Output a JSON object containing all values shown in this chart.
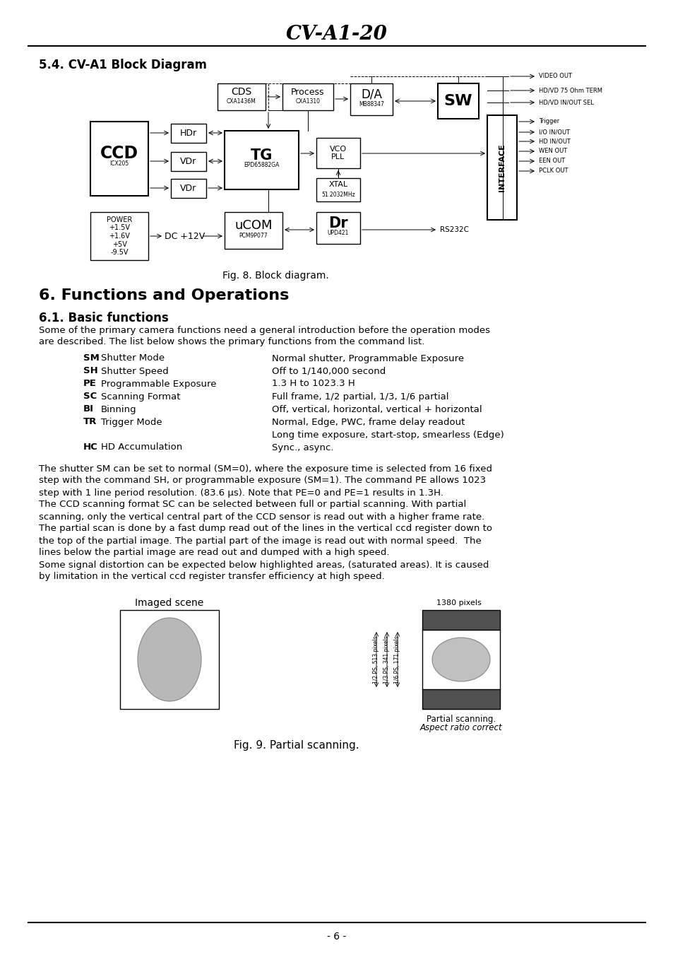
{
  "page_title": "CV-A1-20",
  "section_54_title": "5.4. CV-A1 Block Diagram",
  "fig8_caption": "Fig. 8. Block diagram.",
  "section_6_title": "6. Functions and Operations",
  "section_61_title": "6.1. Basic functions",
  "intro_text_1": "Some of the primary camera functions need a general introduction before the operation modes",
  "intro_text_2": "are described. The list below shows the primary functions from the command list.",
  "functions_list": [
    {
      "code": "SM",
      "name": "Shutter Mode",
      "desc": "Normal shutter, Programmable Exposure"
    },
    {
      "code": "SH",
      "name": "Shutter Speed",
      "desc": "Off to 1/140,000 second"
    },
    {
      "code": "PE",
      "name": "Programmable Exposure",
      "desc": "1.3 H to 1023.3 H"
    },
    {
      "code": "SC",
      "name": "Scanning Format",
      "desc": "Full frame, 1/2 partial, 1/3, 1/6 partial"
    },
    {
      "code": "BI",
      "name": "Binning",
      "desc": "Off, vertical, horizontal, vertical + horizontal"
    },
    {
      "code": "TR",
      "name": "Trigger Mode",
      "desc": "Normal, Edge, PWC, frame delay readout"
    },
    {
      "code": "",
      "name": "",
      "desc": "Long time exposure, start-stop, smearless (Edge)"
    },
    {
      "code": "HC",
      "name": "HD Accumulation",
      "desc": "Sync., async."
    }
  ],
  "body_lines": [
    "The shutter SM can be set to normal (SM=0), where the exposure time is selected from 16 fixed",
    "step with the command SH, or programmable exposure (SM=1). The command PE allows 1023",
    "step with 1 line period resolution. (83.6 μs). Note that PE=0 and PE=1 results in 1.3H.",
    "The CCD scanning format SC can be selected between full or partial scanning. With partial",
    "scanning, only the vertical central part of the CCD sensor is read out with a higher frame rate.",
    "The partial scan is done by a fast dump read out of the lines in the vertical ccd register down to",
    "the top of the partial image. The partial part of the image is read out with normal speed.  The",
    "lines below the partial image are read out and dumped with a high speed.",
    "Some signal distortion can be expected below highlighted areas, (saturated areas). It is caused",
    "by limitation in the vertical ccd register transfer efficiency at high speed."
  ],
  "bold_segments": {
    "0": [
      [
        "SM",
        11,
        13
      ]
    ],
    "1": [
      [
        "SH",
        18,
        20
      ],
      [
        "PE",
        50,
        52
      ]
    ],
    "3": [
      [
        "SC",
        23,
        25
      ]
    ]
  },
  "fig9_caption": "Fig. 9. Partial scanning.",
  "imaged_scene_label": "Imaged scene",
  "pixels_1380": "1380 pixels",
  "ps_labels": [
    "1/2 PS, 513 pixels",
    "1/3 PS, 341 pixels",
    "1/6 PS, 171 pixels"
  ],
  "partial_scan_label1": "Partial scanning.",
  "partial_scan_label2": "Aspect ratio correct",
  "page_number": "- 6 -",
  "bg_color": "#ffffff",
  "text_color": "#000000",
  "line_color": "#000000"
}
